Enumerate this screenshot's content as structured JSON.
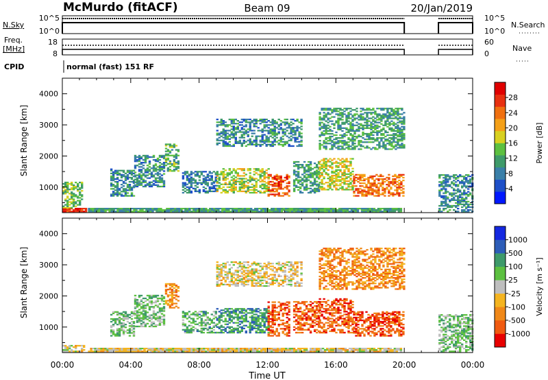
{
  "header": {
    "station": "McMurdo (fitACF)",
    "beam": "Beam 09",
    "date": "20/Jan/2019"
  },
  "status_panels": {
    "nsky_label": "N.Sky",
    "nsky_ticks": [
      "10^5",
      "10^0"
    ],
    "nsearch_label": "N.Search",
    "nsearch_ticks": [
      "10^5",
      "10^0"
    ],
    "freq_label_1": "Freq.",
    "freq_label_2": "[MHz]",
    "freq_ticks": [
      "18",
      "8"
    ],
    "nave_label": "Nave",
    "nave_ticks": [
      "60",
      "0"
    ],
    "cpid_label": "CPID",
    "cpid_text": "normal (fast) 151 RF"
  },
  "chart_data": [
    {
      "type": "heatmap",
      "title": "",
      "xlabel": "",
      "ylabel": "Slant Range [km]",
      "x_ticks": [
        "00:00",
        "04:00",
        "08:00",
        "12:00",
        "16:00",
        "20:00",
        "00:00"
      ],
      "y_ticks": [
        "1000",
        "2000",
        "3000",
        "4000"
      ],
      "ylim": [
        180,
        4500
      ],
      "colorbar": {
        "label": "Power [dB]",
        "ticks": [
          "4",
          "8",
          "12",
          "16",
          "20",
          "24",
          "28"
        ],
        "range": [
          0,
          30
        ],
        "colors": [
          "#0018ff",
          "#1e50c8",
          "#3a7fa8",
          "#3e9a6a",
          "#5cc040",
          "#d8d020",
          "#f4a018",
          "#f07010",
          "#e83010",
          "#e00000"
        ]
      },
      "echo_regions": [
        {
          "t0": 0.0,
          "t1": 1.4,
          "r0": 200,
          "r1": 320,
          "level": 0.9
        },
        {
          "t0": 0.0,
          "t1": 1.2,
          "r0": 320,
          "r1": 1150,
          "level": 0.45
        },
        {
          "t0": 1.5,
          "t1": 19.8,
          "r0": 200,
          "r1": 330,
          "level": 0.35
        },
        {
          "t0": 2.8,
          "t1": 4.2,
          "r0": 700,
          "r1": 1600,
          "level": 0.3
        },
        {
          "t0": 4.2,
          "t1": 6.0,
          "r0": 1000,
          "r1": 2000,
          "level": 0.3
        },
        {
          "t0": 6.0,
          "t1": 6.8,
          "r0": 1500,
          "r1": 2400,
          "level": 0.4
        },
        {
          "t0": 7.0,
          "t1": 9.0,
          "r0": 800,
          "r1": 1500,
          "level": 0.25
        },
        {
          "t0": 9.0,
          "t1": 12.0,
          "r0": 800,
          "r1": 1600,
          "level": 0.5
        },
        {
          "t0": 12.0,
          "t1": 13.2,
          "r0": 700,
          "r1": 1400,
          "level": 0.8
        },
        {
          "t0": 13.5,
          "t1": 15.0,
          "r0": 800,
          "r1": 1800,
          "level": 0.35
        },
        {
          "t0": 15.0,
          "t1": 17.0,
          "r0": 900,
          "r1": 1900,
          "level": 0.55
        },
        {
          "t0": 17.0,
          "t1": 20.0,
          "r0": 700,
          "r1": 1400,
          "level": 0.75
        },
        {
          "t0": 9.0,
          "t1": 14.0,
          "r0": 2300,
          "r1": 3200,
          "level": 0.3
        },
        {
          "t0": 15.0,
          "t1": 20.0,
          "r0": 2200,
          "r1": 3550,
          "level": 0.35
        },
        {
          "t0": 22.0,
          "t1": 24.0,
          "r0": 200,
          "r1": 1400,
          "level": 0.3
        }
      ]
    },
    {
      "type": "heatmap",
      "title": "",
      "xlabel": "Time UT",
      "ylabel": "Slant Range [km]",
      "x_ticks": [
        "00:00",
        "04:00",
        "08:00",
        "12:00",
        "16:00",
        "20:00",
        "00:00"
      ],
      "y_ticks": [
        "1000",
        "2000",
        "3000",
        "4000"
      ],
      "ylim": [
        180,
        4500
      ],
      "colorbar": {
        "label": "Velocity [m s⁻¹]",
        "ticks": [
          "1000",
          "500",
          "100",
          "25",
          "-25",
          "-100",
          "-500",
          "-1000"
        ],
        "range": [
          -1200,
          1200
        ],
        "colors": [
          "#e80000",
          "#f05a10",
          "#f08818",
          "#f4b420",
          "#bebebe",
          "#5cc040",
          "#3e9a6a",
          "#2d5db8",
          "#1428e0"
        ]
      },
      "echo_regions": [
        {
          "t0": 0.0,
          "t1": 1.4,
          "r0": 200,
          "r1": 400,
          "level": 0.45
        },
        {
          "t0": 1.5,
          "t1": 19.8,
          "r0": 200,
          "r1": 330,
          "level": 0.45
        },
        {
          "t0": 2.8,
          "t1": 4.2,
          "r0": 700,
          "r1": 1500,
          "level": 0.62
        },
        {
          "t0": 4.2,
          "t1": 6.0,
          "r0": 1000,
          "r1": 2000,
          "level": 0.6
        },
        {
          "t0": 6.0,
          "t1": 6.8,
          "r0": 1600,
          "r1": 2400,
          "level": 0.3
        },
        {
          "t0": 7.0,
          "t1": 9.0,
          "r0": 800,
          "r1": 1500,
          "level": 0.65
        },
        {
          "t0": 9.0,
          "t1": 12.0,
          "r0": 800,
          "r1": 1600,
          "level": 0.72
        },
        {
          "t0": 12.0,
          "t1": 13.2,
          "r0": 700,
          "r1": 1800,
          "level": 0.18
        },
        {
          "t0": 13.5,
          "t1": 15.0,
          "r0": 800,
          "r1": 1800,
          "level": 0.2
        },
        {
          "t0": 15.0,
          "t1": 17.0,
          "r0": 800,
          "r1": 1900,
          "level": 0.18
        },
        {
          "t0": 17.0,
          "t1": 20.0,
          "r0": 700,
          "r1": 1500,
          "level": 0.16
        },
        {
          "t0": 9.0,
          "t1": 14.0,
          "r0": 2300,
          "r1": 3100,
          "level": 0.45
        },
        {
          "t0": 15.0,
          "t1": 20.0,
          "r0": 2200,
          "r1": 3550,
          "level": 0.28
        },
        {
          "t0": 22.0,
          "t1": 24.0,
          "r0": 200,
          "r1": 1400,
          "level": 0.6
        }
      ]
    }
  ]
}
